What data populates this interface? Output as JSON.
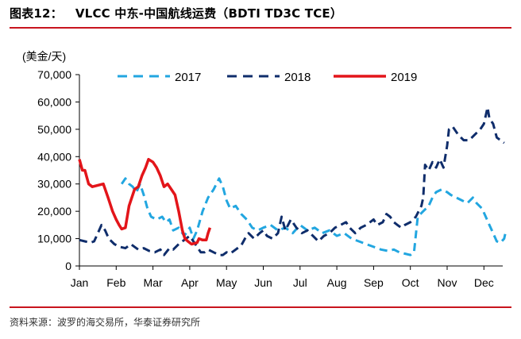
{
  "figure": {
    "label": "图表12：",
    "title": "VLCC 中东-中国航线运费（BDTI TD3C TCE）",
    "source": "资料来源：波罗的海交易所，华泰证券研究所"
  },
  "colors": {
    "rule": "#c8141e",
    "s2017": "#22a6e0",
    "s2018": "#0f2d6b",
    "s2019": "#e3151a"
  },
  "chart_data": {
    "type": "line",
    "unit_label": "(美金/天)",
    "ylim": [
      0,
      70000
    ],
    "yticks": [
      0,
      10000,
      20000,
      30000,
      40000,
      50000,
      60000,
      70000
    ],
    "ytick_labels": [
      "0",
      "10,000",
      "20,000",
      "30,000",
      "40,000",
      "50,000",
      "60,000",
      "70,000"
    ],
    "xlim": [
      0,
      11.6
    ],
    "months": [
      "Jan",
      "Feb",
      "Mar",
      "Apr",
      "May",
      "Jun",
      "Jul",
      "Aug",
      "Sep",
      "Oct",
      "Nov",
      "Dec"
    ],
    "legend_position": "top",
    "grid": false,
    "series": [
      {
        "name": "2017",
        "color": "#22a6e0",
        "style": "dashed",
        "points": [
          [
            1.15,
            30000
          ],
          [
            1.25,
            32000
          ],
          [
            1.35,
            30000
          ],
          [
            1.45,
            29000
          ],
          [
            1.55,
            27000
          ],
          [
            1.65,
            30000
          ],
          [
            1.75,
            26000
          ],
          [
            1.85,
            21000
          ],
          [
            1.95,
            18000
          ],
          [
            2.1,
            17000
          ],
          [
            2.25,
            18000
          ],
          [
            2.35,
            16000
          ],
          [
            2.45,
            17000
          ],
          [
            2.55,
            13000
          ],
          [
            2.7,
            14000
          ],
          [
            2.85,
            11000
          ],
          [
            3.0,
            14000
          ],
          [
            3.1,
            10000
          ],
          [
            3.2,
            13000
          ],
          [
            3.35,
            20000
          ],
          [
            3.5,
            25000
          ],
          [
            3.65,
            28000
          ],
          [
            3.8,
            32000
          ],
          [
            3.9,
            29000
          ],
          [
            4.0,
            24000
          ],
          [
            4.1,
            21000
          ],
          [
            4.25,
            22000
          ],
          [
            4.4,
            19000
          ],
          [
            4.55,
            17000
          ],
          [
            4.7,
            14000
          ],
          [
            4.85,
            13000
          ],
          [
            5.0,
            14000
          ],
          [
            5.2,
            15000
          ],
          [
            5.4,
            13000
          ],
          [
            5.6,
            14000
          ],
          [
            5.8,
            12000
          ],
          [
            6.0,
            15000
          ],
          [
            6.2,
            13000
          ],
          [
            6.4,
            14000
          ],
          [
            6.6,
            12000
          ],
          [
            6.8,
            13000
          ],
          [
            7.0,
            11000
          ],
          [
            7.2,
            12000
          ],
          [
            7.4,
            10000
          ],
          [
            7.6,
            9000
          ],
          [
            7.8,
            8000
          ],
          [
            8.0,
            7000
          ],
          [
            8.2,
            6000
          ],
          [
            8.4,
            5500
          ],
          [
            8.55,
            6000
          ],
          [
            8.7,
            5000
          ],
          [
            8.85,
            4500
          ],
          [
            9.0,
            4000
          ],
          [
            9.1,
            5000
          ],
          [
            9.2,
            18000
          ],
          [
            9.35,
            20000
          ],
          [
            9.5,
            22000
          ],
          [
            9.6,
            25000
          ],
          [
            9.7,
            27000
          ],
          [
            9.85,
            28000
          ],
          [
            10.0,
            27000
          ],
          [
            10.1,
            26000
          ],
          [
            10.25,
            25000
          ],
          [
            10.4,
            24000
          ],
          [
            10.55,
            23000
          ],
          [
            10.7,
            25000
          ],
          [
            10.8,
            23000
          ],
          [
            10.95,
            21000
          ],
          [
            11.05,
            18000
          ],
          [
            11.15,
            15000
          ],
          [
            11.25,
            12000
          ],
          [
            11.35,
            9000
          ],
          [
            11.45,
            8500
          ],
          [
            11.55,
            10000
          ],
          [
            11.6,
            13000
          ]
        ]
      },
      {
        "name": "2018",
        "color": "#0f2d6b",
        "style": "dashed",
        "points": [
          [
            0.0,
            9500
          ],
          [
            0.15,
            9000
          ],
          [
            0.3,
            8500
          ],
          [
            0.4,
            9000
          ],
          [
            0.5,
            12000
          ],
          [
            0.6,
            15000
          ],
          [
            0.7,
            13000
          ],
          [
            0.8,
            10000
          ],
          [
            0.95,
            8000
          ],
          [
            1.1,
            7000
          ],
          [
            1.25,
            6500
          ],
          [
            1.4,
            8000
          ],
          [
            1.5,
            7000
          ],
          [
            1.6,
            6000
          ],
          [
            1.75,
            6500
          ],
          [
            1.9,
            5500
          ],
          [
            2.05,
            5000
          ],
          [
            2.2,
            6000
          ],
          [
            2.3,
            4000
          ],
          [
            2.45,
            6500
          ],
          [
            2.55,
            6000
          ],
          [
            2.7,
            8000
          ],
          [
            2.8,
            9000
          ],
          [
            2.9,
            10000
          ],
          [
            3.0,
            11000
          ],
          [
            3.1,
            9000
          ],
          [
            3.2,
            7000
          ],
          [
            3.3,
            5000
          ],
          [
            3.4,
            5000
          ],
          [
            3.5,
            6000
          ],
          [
            3.65,
            5000
          ],
          [
            3.8,
            4000
          ],
          [
            3.9,
            4000
          ],
          [
            4.0,
            5000
          ],
          [
            4.1,
            4500
          ],
          [
            4.25,
            6000
          ],
          [
            4.4,
            7500
          ],
          [
            4.5,
            10000
          ],
          [
            4.6,
            12000
          ],
          [
            4.75,
            10000
          ],
          [
            4.9,
            12000
          ],
          [
            5.0,
            13000
          ],
          [
            5.1,
            11000
          ],
          [
            5.25,
            10000
          ],
          [
            5.4,
            12000
          ],
          [
            5.5,
            18000
          ],
          [
            5.6,
            13000
          ],
          [
            5.75,
            17000
          ],
          [
            5.9,
            14000
          ],
          [
            6.05,
            12000
          ],
          [
            6.2,
            13000
          ],
          [
            6.35,
            11000
          ],
          [
            6.5,
            9000
          ],
          [
            6.65,
            11000
          ],
          [
            6.8,
            12000
          ],
          [
            6.95,
            14000
          ],
          [
            7.1,
            15000
          ],
          [
            7.25,
            16000
          ],
          [
            7.35,
            14000
          ],
          [
            7.5,
            12000
          ],
          [
            7.65,
            14000
          ],
          [
            7.8,
            15000
          ],
          [
            7.9,
            16000
          ],
          [
            8.0,
            17000
          ],
          [
            8.1,
            15000
          ],
          [
            8.25,
            16000
          ],
          [
            8.35,
            19000
          ],
          [
            8.45,
            18000
          ],
          [
            8.55,
            16000
          ],
          [
            8.65,
            15000
          ],
          [
            8.75,
            14000
          ],
          [
            8.85,
            15000
          ],
          [
            9.0,
            16000
          ],
          [
            9.15,
            18000
          ],
          [
            9.3,
            22000
          ],
          [
            9.35,
            25000
          ],
          [
            9.4,
            37000
          ],
          [
            9.5,
            35000
          ],
          [
            9.6,
            38000
          ],
          [
            9.7,
            36000
          ],
          [
            9.8,
            39000
          ],
          [
            9.9,
            36000
          ],
          [
            9.95,
            40000
          ],
          [
            10.0,
            44000
          ],
          [
            10.05,
            50000
          ],
          [
            10.15,
            51000
          ],
          [
            10.3,
            48000
          ],
          [
            10.45,
            46000
          ],
          [
            10.6,
            46000
          ],
          [
            10.75,
            48000
          ],
          [
            10.9,
            50000
          ],
          [
            11.0,
            52000
          ],
          [
            11.1,
            58000
          ],
          [
            11.15,
            54000
          ],
          [
            11.25,
            52000
          ],
          [
            11.35,
            47000
          ],
          [
            11.45,
            46000
          ],
          [
            11.55,
            45000
          ]
        ]
      },
      {
        "name": "2019",
        "color": "#e3151a",
        "style": "solid",
        "points": [
          [
            0.0,
            39000
          ],
          [
            0.08,
            35000
          ],
          [
            0.15,
            35000
          ],
          [
            0.25,
            30000
          ],
          [
            0.35,
            29000
          ],
          [
            0.5,
            29500
          ],
          [
            0.65,
            30000
          ],
          [
            0.78,
            25000
          ],
          [
            0.9,
            20000
          ],
          [
            1.0,
            17000
          ],
          [
            1.08,
            15000
          ],
          [
            1.15,
            13500
          ],
          [
            1.25,
            14000
          ],
          [
            1.35,
            22000
          ],
          [
            1.5,
            28000
          ],
          [
            1.6,
            29000
          ],
          [
            1.7,
            33000
          ],
          [
            1.8,
            36000
          ],
          [
            1.88,
            39000
          ],
          [
            2.0,
            38000
          ],
          [
            2.1,
            36000
          ],
          [
            2.2,
            33000
          ],
          [
            2.3,
            29000
          ],
          [
            2.4,
            30000
          ],
          [
            2.5,
            28000
          ],
          [
            2.6,
            26000
          ],
          [
            2.7,
            20000
          ],
          [
            2.8,
            13000
          ],
          [
            2.87,
            10000
          ],
          [
            2.95,
            9000
          ],
          [
            3.05,
            8000
          ],
          [
            3.2,
            8500
          ],
          [
            3.25,
            10000
          ],
          [
            3.35,
            9500
          ],
          [
            3.45,
            9500
          ],
          [
            3.5,
            12000
          ],
          [
            3.55,
            14000
          ]
        ]
      }
    ]
  }
}
